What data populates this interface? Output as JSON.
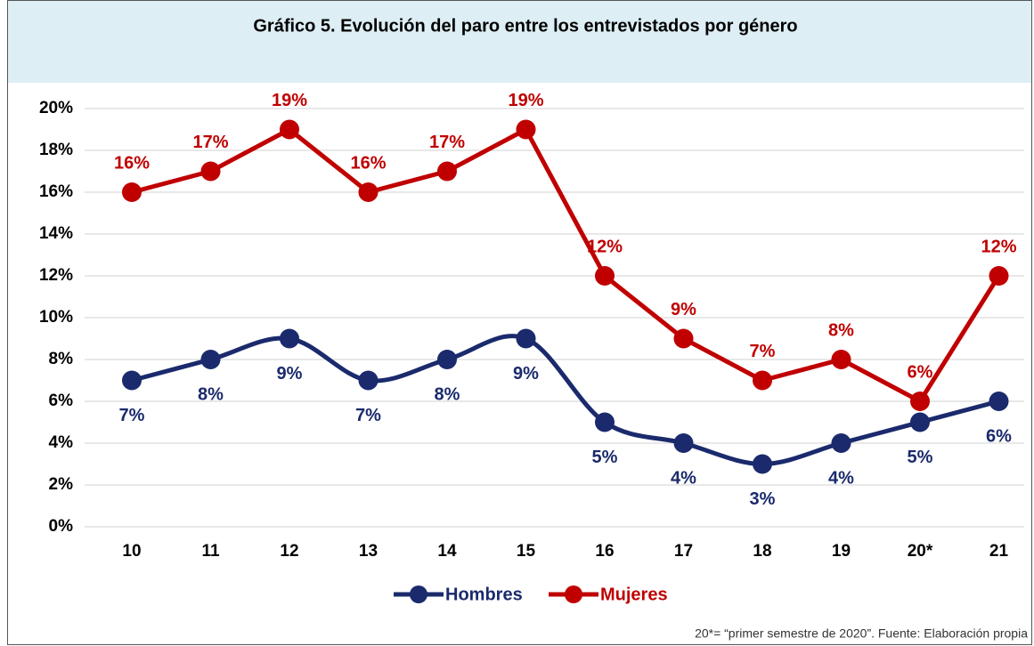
{
  "chart_data": {
    "type": "line",
    "title": "Gráfico 5. Evolución del paro entre los entrevistados por género",
    "source": "20*= “primer semestre de 2020”. Fuente: Elaboración propia",
    "categories": [
      "10",
      "11",
      "12",
      "13",
      "14",
      "15",
      "16",
      "17",
      "18",
      "19",
      "20*",
      "21"
    ],
    "series": [
      {
        "name": "Hombres",
        "color": "#1a2a6c",
        "smooth": true,
        "values": [
          7,
          8,
          9,
          7,
          8,
          9,
          5,
          4,
          3,
          4,
          5,
          6
        ],
        "value_labels": [
          "7%",
          "8%",
          "9%",
          "7%",
          "8%",
          "9%",
          "5%",
          "4%",
          "3%",
          "4%",
          "5%",
          "6%"
        ]
      },
      {
        "name": "Mujeres",
        "color": "#c00000",
        "smooth": false,
        "values": [
          16,
          17,
          19,
          16,
          17,
          19,
          12,
          9,
          7,
          8,
          6,
          12
        ],
        "value_labels": [
          "16%",
          "17%",
          "19%",
          "16%",
          "17%",
          "19%",
          "12%",
          "9%",
          "7%",
          "8%",
          "6%",
          "12%"
        ]
      }
    ],
    "ylim": [
      0,
      20
    ],
    "yticks": [
      {
        "value": 0,
        "label": "0%"
      },
      {
        "value": 2,
        "label": "2%"
      },
      {
        "value": 4,
        "label": "4%"
      },
      {
        "value": 6,
        "label": "6%"
      },
      {
        "value": 8,
        "label": "8%"
      },
      {
        "value": 10,
        "label": "10%"
      },
      {
        "value": 12,
        "label": "12%"
      },
      {
        "value": 14,
        "label": "14%"
      },
      {
        "value": 16,
        "label": "16%"
      },
      {
        "value": 18,
        "label": "18%"
      },
      {
        "value": 20,
        "label": "20%"
      }
    ],
    "grid": true,
    "legend": "bottom"
  }
}
